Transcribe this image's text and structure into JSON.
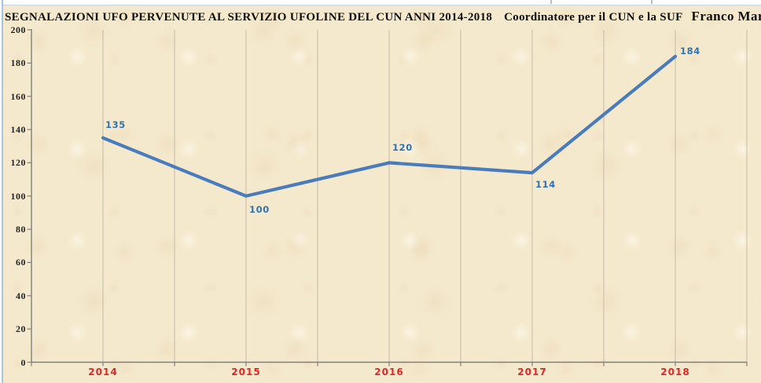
{
  "title": {
    "main": "SEGNALAZIONI UFO PERVENUTE AL SERVIZIO UFOLINE  DEL CUN ANNI 2014-2018",
    "coordinator": "Coordinatore per il CUN e la SUF",
    "author": "Franco Mari"
  },
  "colors": {
    "line": "#4a7cbd",
    "data_label": "#2e73b8",
    "x_label": "#e02727",
    "y_label": "#262626",
    "gridline": "#c2bbab",
    "axis": "#7f7f7f",
    "background": "#f5e9cd",
    "title_text": "#101010"
  },
  "chart_data": {
    "type": "line",
    "title": "SEGNALAZIONI UFO PERVENUTE AL SERVIZIO UFOLINE DEL CUN ANNI 2014-2018",
    "subtitle": "Coordinatore per il CUN e la SUF Franco Mari",
    "categories": [
      "2014",
      "2015",
      "2016",
      "2017",
      "2018"
    ],
    "series": [
      {
        "name": "Segnalazioni UFO",
        "values": [
          135,
          100,
          120,
          114,
          184
        ]
      }
    ],
    "data_labels": [
      "135",
      "100",
      "120",
      "114",
      "184"
    ],
    "xlabel": "",
    "ylabel": "",
    "ylim": [
      0,
      200
    ],
    "y_tick_step": 20,
    "y_ticks": [
      0,
      20,
      40,
      60,
      80,
      100,
      120,
      140,
      160,
      180,
      200
    ],
    "grid": "vertical gridlines at categories and category midpoints",
    "legend_position": "none",
    "marker": "none"
  }
}
